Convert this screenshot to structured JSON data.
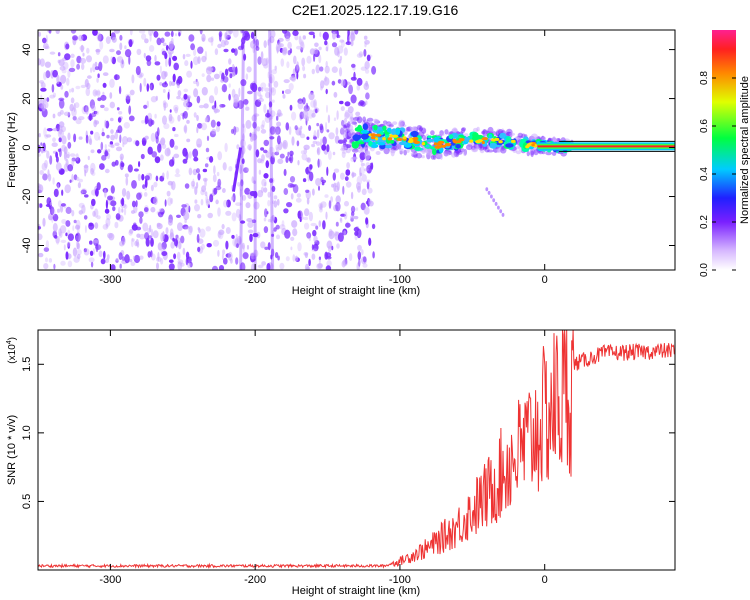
{
  "title": "C2E1.2025.122.17.19.G16",
  "colors": {
    "snr_line": "#ee3333",
    "scatter_main": "#7b2bff",
    "scatter_light": "#c9a6ff",
    "signal_core": "#ff2020"
  },
  "spectrogram": {
    "type": "heatmap",
    "xlabel": "Height of straight line (km)",
    "ylabel": "Frequency (Hz)",
    "xlim": [
      -350,
      90
    ],
    "ylim": [
      -50,
      48
    ],
    "x_ticks": [
      -300,
      -200,
      -100,
      0
    ],
    "x_tick_labels": [
      "-300",
      "-200",
      "-100",
      "0"
    ],
    "y_ticks": [
      -40,
      -20,
      0,
      20,
      40
    ],
    "y_tick_labels": [
      "-40",
      "-20",
      "0",
      "20",
      "40"
    ],
    "colorbar": {
      "label": "Normalized spectral amplitude",
      "range": [
        0,
        1
      ],
      "ticks": [
        0.0,
        0.2,
        0.4,
        0.6,
        0.8
      ],
      "tick_labels": [
        "0.0",
        "0.2",
        "0.4",
        "0.6",
        "0.8"
      ]
    },
    "noise_region_km": [
      -350,
      -118
    ],
    "signal_centerline": [
      {
        "x": -135,
        "y": 5
      },
      {
        "x": -100,
        "y": 4
      },
      {
        "x": -75,
        "y": 1
      },
      {
        "x": -50,
        "y": 3
      },
      {
        "x": -30,
        "y": 3
      },
      {
        "x": -10,
        "y": 1
      },
      {
        "x": 10,
        "y": 0.5
      },
      {
        "x": 90,
        "y": 0.5
      }
    ]
  },
  "snr_plot": {
    "type": "line",
    "xlabel": "Height of straight line (km)",
    "ylabel": "SNR (10 * v/v)",
    "scale_label": "(x10",
    "scale_exp": "4",
    "scale_close": ")",
    "xlim": [
      -350,
      90
    ],
    "ylim": [
      0,
      1.75
    ],
    "x_ticks": [
      -300,
      -200,
      -100,
      0
    ],
    "x_tick_labels": [
      "-300",
      "-200",
      "-100",
      "0"
    ],
    "y_ticks": [
      0.5,
      1.0,
      1.5
    ],
    "y_tick_labels": [
      "0.5",
      "1.0",
      "1.5"
    ],
    "envelope": [
      {
        "x": -350,
        "y": 0.03
      },
      {
        "x": -110,
        "y": 0.03
      },
      {
        "x": -100,
        "y": 0.07
      },
      {
        "x": -80,
        "y": 0.18
      },
      {
        "x": -60,
        "y": 0.35
      },
      {
        "x": -40,
        "y": 0.6
      },
      {
        "x": -25,
        "y": 0.85
      },
      {
        "x": -10,
        "y": 1.05
      },
      {
        "x": 5,
        "y": 1.3
      },
      {
        "x": 20,
        "y": 1.5
      },
      {
        "x": 40,
        "y": 1.58
      },
      {
        "x": 90,
        "y": 1.6
      }
    ]
  }
}
